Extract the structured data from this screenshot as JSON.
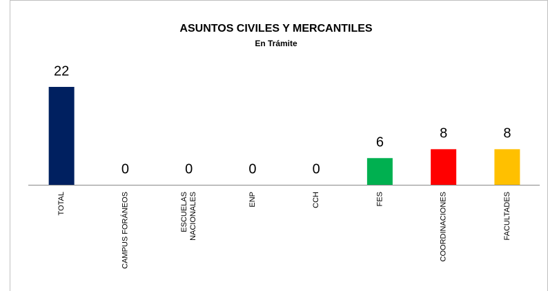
{
  "chart_data": {
    "type": "bar",
    "title": "ASUNTOS CIVILES Y MERCANTILES",
    "subtitle": "En Trámite",
    "categories": [
      "TOTAL",
      "CAMPUS FORÁNEOS",
      "ESCUELAS NACIONALES",
      "ENP",
      "CCH",
      "FES",
      "COORDINACIONES",
      "FACULTADES"
    ],
    "values": [
      22,
      0,
      0,
      0,
      0,
      6,
      8,
      8
    ],
    "colors": [
      "#002060",
      "#002060",
      "#002060",
      "#002060",
      "#002060",
      "#00b050",
      "#ff0000",
      "#ffc000"
    ]
  }
}
